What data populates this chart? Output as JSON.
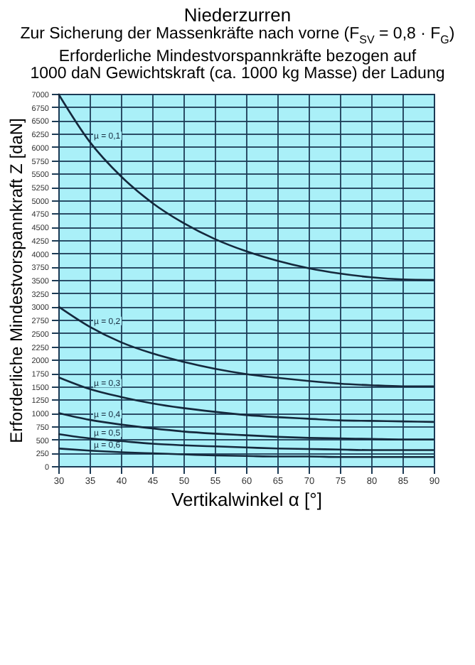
{
  "chart_data": {
    "type": "line",
    "title": "Niederzurren",
    "subtitle": "Zur Sicherung der Massenkräfte nach vorne (F$_{SV}$ = 0,8 · F$_{G}$)\nErforderliche Mindestvorspannkräfte bezogen auf\n1000 daN Gewichtskraft (ca. 1000 kg Masse) der Ladung",
    "xlabel": "Vertikalwinkel α [°]",
    "ylabel": "Erforderliche Mindestvorspannkraft Z [daN]",
    "x": [
      30,
      35,
      40,
      45,
      50,
      55,
      60,
      65,
      70,
      75,
      80,
      85,
      90
    ],
    "series": [
      {
        "name": "µ = 0,1",
        "color": "#14283c",
        "values": [
          7000,
          6100,
          5450,
          4950,
          4570,
          4270,
          4040,
          3860,
          3720,
          3620,
          3550,
          3510,
          3500
        ]
      },
      {
        "name": "µ = 0,2",
        "color": "#14283c",
        "values": [
          3000,
          2620,
          2330,
          2120,
          1960,
          1830,
          1730,
          1660,
          1600,
          1550,
          1520,
          1500,
          1500
        ]
      },
      {
        "name": "µ = 0,3",
        "color": "#14283c",
        "values": [
          1670,
          1450,
          1300,
          1180,
          1090,
          1020,
          960,
          920,
          890,
          860,
          850,
          840,
          830
        ]
      },
      {
        "name": "µ = 0,4",
        "color": "#14283c",
        "values": [
          1000,
          870,
          780,
          710,
          650,
          610,
          580,
          550,
          530,
          520,
          510,
          500,
          500
        ]
      },
      {
        "name": "µ = 0,5",
        "color": "#14283c",
        "values": [
          600,
          520,
          470,
          420,
          390,
          370,
          350,
          330,
          320,
          310,
          300,
          300,
          300
        ]
      },
      {
        "name": "µ = 0,6",
        "color": "#14283c",
        "values": [
          330,
          290,
          260,
          240,
          220,
          200,
          190,
          180,
          180,
          170,
          170,
          170,
          170
        ]
      }
    ],
    "xlim": [
      30,
      90
    ],
    "xticks": [
      30,
      35,
      40,
      45,
      50,
      55,
      60,
      65,
      70,
      75,
      80,
      85,
      90
    ],
    "ylim": [
      0,
      7000
    ],
    "yticks": [
      0,
      250,
      500,
      750,
      1000,
      1250,
      1500,
      1750,
      2000,
      2250,
      2500,
      2750,
      3000,
      3250,
      3500,
      3750,
      4000,
      4250,
      4500,
      4750,
      5000,
      5250,
      5500,
      5750,
      6000,
      6250,
      6500,
      6750,
      7000
    ],
    "grid": true,
    "legend": false,
    "marker": "none",
    "line_style": "solid"
  }
}
